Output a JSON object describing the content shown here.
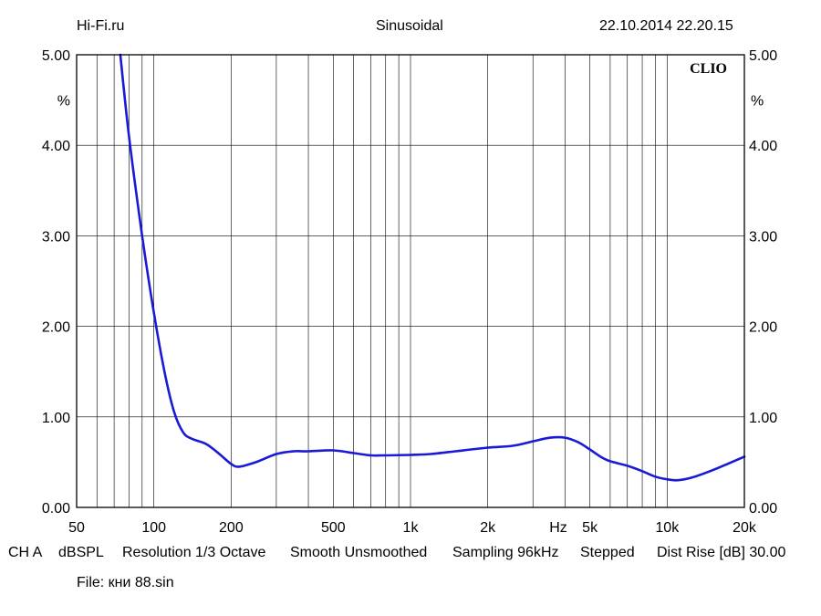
{
  "header": {
    "left": "Hi-Fi.ru",
    "center": "Sinusoidal",
    "right": "22.10.2014 22.20.15"
  },
  "brand": "CLIO",
  "footer": {
    "channel": "CH A",
    "unit": "dBSPL",
    "resolution": "Resolution 1/3 Octave",
    "smoothing": "Smooth Unsmoothed",
    "sampling": "Sampling 96kHz",
    "mode": "Stepped",
    "dist_rise": "Dist Rise [dB] 30.00"
  },
  "file_label": "File: кни 88.sin",
  "colors": {
    "curve": "#1a1ad6",
    "grid": "#000000"
  },
  "chart_data": {
    "type": "line",
    "xscale": "log",
    "xlim": [
      50,
      20000
    ],
    "ylim": [
      0,
      5
    ],
    "ylabel": "%",
    "xunit_label": "Hz",
    "x_tick_labels": [
      {
        "x": 50,
        "label": "50"
      },
      {
        "x": 100,
        "label": "100"
      },
      {
        "x": 200,
        "label": "200"
      },
      {
        "x": 500,
        "label": "500"
      },
      {
        "x": 1000,
        "label": "1k"
      },
      {
        "x": 2000,
        "label": "2k"
      },
      {
        "x": 5000,
        "label": "5k"
      },
      {
        "x": 10000,
        "label": "10k"
      },
      {
        "x": 20000,
        "label": "20k"
      }
    ],
    "y_tick_labels": [
      {
        "y": 0,
        "label": "0.00"
      },
      {
        "y": 1,
        "label": "1.00"
      },
      {
        "y": 2,
        "label": "2.00"
      },
      {
        "y": 3,
        "label": "3.00"
      },
      {
        "y": 4,
        "label": "4.00"
      },
      {
        "y": 5,
        "label": "5.00"
      }
    ],
    "x_gridlines": [
      60,
      70,
      80,
      90,
      100,
      200,
      300,
      400,
      500,
      600,
      700,
      800,
      900,
      1000,
      2000,
      3000,
      4000,
      5000,
      6000,
      7000,
      8000,
      9000,
      10000
    ],
    "y_gridlines": [
      1,
      2,
      3,
      4
    ],
    "grid": true,
    "series": [
      {
        "values": [
          [
            74,
            5.0
          ],
          [
            80,
            4.1
          ],
          [
            90,
            3.0
          ],
          [
            100,
            2.15
          ],
          [
            110,
            1.5
          ],
          [
            120,
            1.05
          ],
          [
            130,
            0.83
          ],
          [
            140,
            0.76
          ],
          [
            160,
            0.7
          ],
          [
            180,
            0.59
          ],
          [
            200,
            0.48
          ],
          [
            215,
            0.45
          ],
          [
            250,
            0.5
          ],
          [
            300,
            0.59
          ],
          [
            350,
            0.62
          ],
          [
            400,
            0.62
          ],
          [
            500,
            0.63
          ],
          [
            600,
            0.6
          ],
          [
            700,
            0.575
          ],
          [
            800,
            0.575
          ],
          [
            1000,
            0.58
          ],
          [
            1200,
            0.59
          ],
          [
            1500,
            0.62
          ],
          [
            2000,
            0.66
          ],
          [
            2500,
            0.68
          ],
          [
            3000,
            0.73
          ],
          [
            3500,
            0.77
          ],
          [
            4000,
            0.77
          ],
          [
            4500,
            0.72
          ],
          [
            5000,
            0.64
          ],
          [
            5500,
            0.56
          ],
          [
            6000,
            0.51
          ],
          [
            7000,
            0.46
          ],
          [
            8000,
            0.4
          ],
          [
            9000,
            0.34
          ],
          [
            10000,
            0.31
          ],
          [
            11000,
            0.3
          ],
          [
            12500,
            0.33
          ],
          [
            15000,
            0.41
          ],
          [
            17500,
            0.49
          ],
          [
            20000,
            0.56
          ]
        ]
      }
    ]
  }
}
